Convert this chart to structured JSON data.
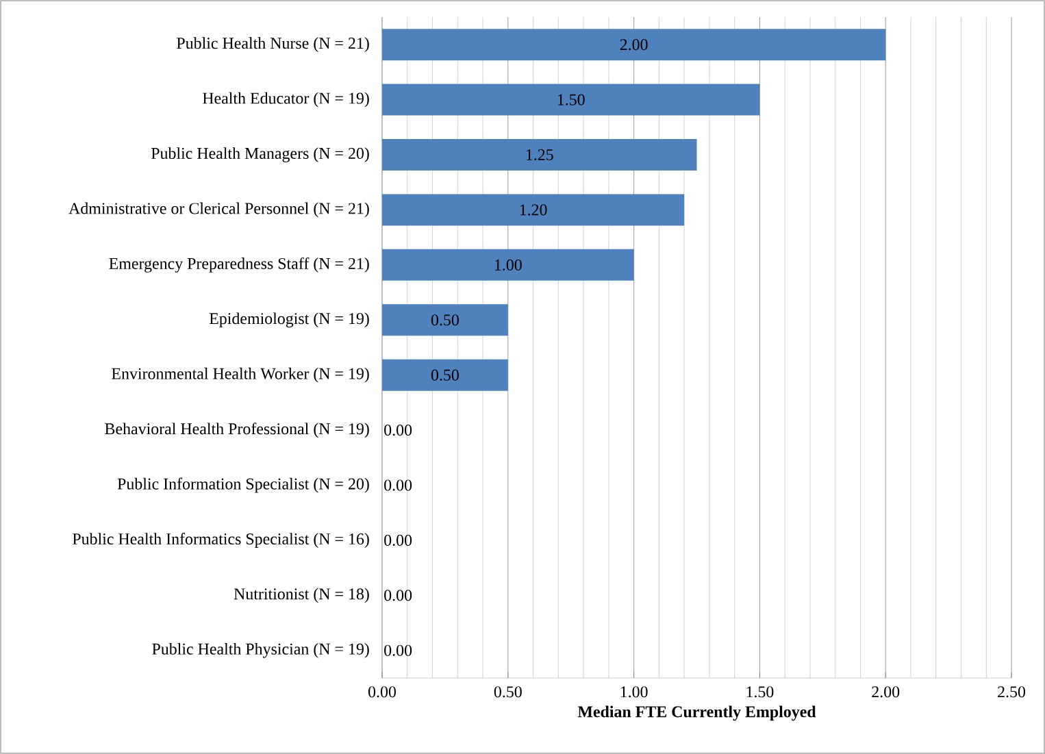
{
  "chart_data": {
    "type": "bar",
    "orientation": "horizontal",
    "xlabel": "Median FTE Currently Employed",
    "categories": [
      "Public Health Nurse (N = 21)",
      "Health Educator (N = 19)",
      "Public Health Managers (N = 20)",
      "Administrative or Clerical Personnel (N = 21)",
      "Emergency Preparedness Staff (N = 21)",
      "Epidemiologist (N = 19)",
      "Environmental Health Worker (N = 19)",
      "Behavioral Health Professional (N = 19)",
      "Public Information Specialist (N = 20)",
      "Public Health Informatics Specialist (N = 16)",
      "Nutritionist (N = 18)",
      "Public Health Physician (N = 19)"
    ],
    "values": [
      2.0,
      1.5,
      1.25,
      1.2,
      1.0,
      0.5,
      0.5,
      0,
      0,
      0,
      0,
      0
    ],
    "value_labels": [
      "2.00",
      "1.50",
      "1.25",
      "1.20",
      "1.00",
      "0.50",
      "0.50",
      "0.00",
      "0.00",
      "0.00",
      "0.00",
      "0.00"
    ],
    "color": "#4f81bd",
    "xlim": [
      0,
      2.5
    ],
    "xticks": [
      {
        "value": 0,
        "label": "0.00"
      },
      {
        "value": 0.5,
        "label": "0.50"
      },
      {
        "value": 1,
        "label": "1.00"
      },
      {
        "value": 1.5,
        "label": "1.50"
      },
      {
        "value": 2,
        "label": "2.00"
      },
      {
        "value": 2.5,
        "label": "2.50"
      }
    ],
    "grid": "x"
  }
}
